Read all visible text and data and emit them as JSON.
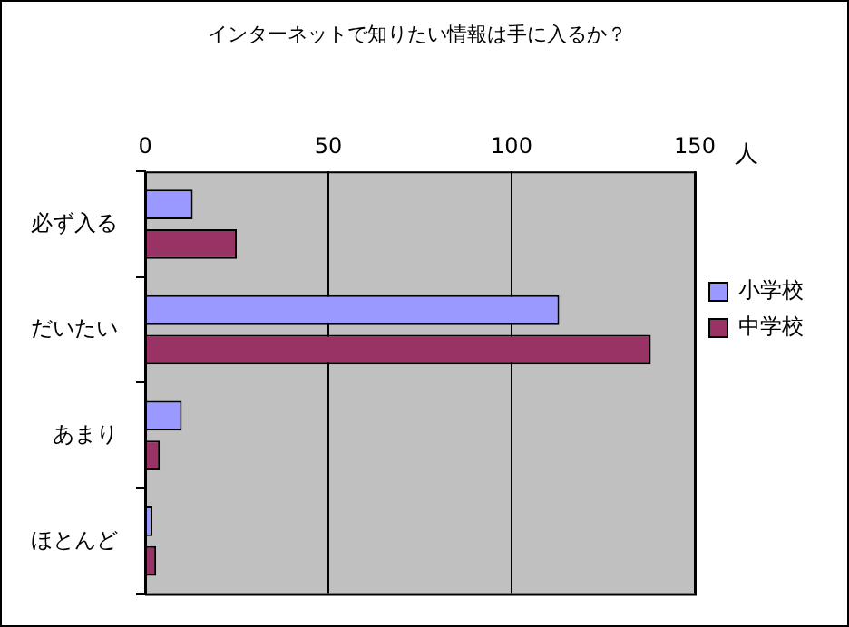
{
  "chart_data": {
    "type": "bar",
    "orientation": "horizontal",
    "title": "インターネットで知りたい情報は手に入るか？",
    "xlabel": "人",
    "categories": [
      "必ず入る",
      "だいたい",
      "あまり",
      "ほとんど"
    ],
    "series": [
      {
        "name": "小学校",
        "color": "#9999ff",
        "values": [
          13,
          113,
          10,
          2
        ]
      },
      {
        "name": "中学校",
        "color": "#993366",
        "values": [
          25,
          138,
          4,
          3
        ]
      }
    ],
    "xlim": [
      0,
      150
    ],
    "xticks": [
      0,
      50,
      100,
      150
    ],
    "grid": "x",
    "legend": "right"
  }
}
